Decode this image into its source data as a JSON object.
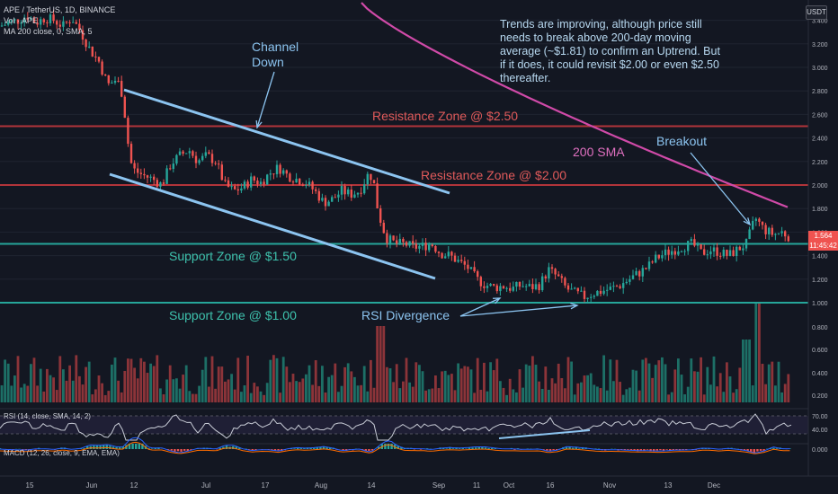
{
  "header": {
    "symbol_line": "APE / TetherUS, 1D, BINANCE",
    "ma_line": "MA 200 close, 0, SMA, 5",
    "vol_line": "Vol · APE"
  },
  "currency_button": "USDT",
  "price_tags": {
    "last": "1.564",
    "countdown": "11:45:42"
  },
  "commentary": "Trends are improving, although price still needs to break above 200-day moving average (~$1.81) to confirm an Uptrend. But if it does, it could revisit $2.00 or even $2.50 thereafter.",
  "annotations": {
    "channel": "Channel Down",
    "resistance_250": "Resistance Zone @ $2.50",
    "resistance_200": "Resistance Zone @ $2.00",
    "sma_label": "200 SMA",
    "breakout": "Breakout",
    "support_150": "Support Zone @ $1.50",
    "support_100": "Support Zone @ $1.00",
    "rsi_divergence": "RSI Divergence"
  },
  "rsi_header": "RSI (14, close, SMA, 14, 2)",
  "macd_header": "MACD (12, 26, close, 9, EMA, EMA)",
  "colors": {
    "background": "#131722",
    "up": "#26a69a",
    "down": "#ef5350",
    "resistance": "#b2343a",
    "support": "#26a69a",
    "channel": "#8cc4f0",
    "sma": "#d04aa8",
    "rsi": "#c8ccd6",
    "annotation_blue": "#8cc4f0"
  },
  "chart_data": {
    "type": "candlestick",
    "title": "APE / TetherUS, 1D, BINANCE",
    "x_tick_labels": [
      "15",
      "Jun",
      "12",
      "Jul",
      "17",
      "Aug",
      "14",
      "Sep",
      "11",
      "Oct",
      "16",
      "Nov",
      "13",
      "Dec"
    ],
    "price_axis": {
      "ticks": [
        "0.200",
        "0.400",
        "0.600",
        "0.800",
        "1.000",
        "1.200",
        "1.400",
        "1.600",
        "1.800",
        "2.000",
        "2.200",
        "2.400",
        "2.600",
        "2.800",
        "3.000",
        "3.200",
        "3.400"
      ],
      "range": [
        0.15,
        3.5
      ]
    },
    "rsi_axis": {
      "ticks": [
        "40.00",
        "70.00"
      ]
    },
    "macd_axis": {
      "ticks": [
        "0.000"
      ]
    },
    "horizontal_levels": [
      {
        "label": "Resistance Zone @ $2.50",
        "value": 2.5
      },
      {
        "label": "Resistance Zone @ $2.00",
        "value": 2.0
      },
      {
        "label": "Support Zone @ $1.50",
        "value": 1.5
      },
      {
        "label": "Support Zone @ $1.00",
        "value": 1.0
      }
    ],
    "last_price": 1.564,
    "sma200_approx": 1.81,
    "price_path": [
      [
        0,
        3.35
      ],
      [
        10,
        3.38
      ],
      [
        20,
        3.4
      ],
      [
        30,
        3.44
      ],
      [
        40,
        3.38
      ],
      [
        50,
        3.42
      ],
      [
        60,
        3.4
      ],
      [
        70,
        3.35
      ],
      [
        80,
        3.42
      ],
      [
        90,
        3.3
      ],
      [
        100,
        3.15
      ],
      [
        110,
        3.05
      ],
      [
        120,
        2.85
      ],
      [
        130,
        2.9
      ],
      [
        137,
        2.75
      ],
      [
        140,
        2.5
      ],
      [
        145,
        2.2
      ],
      [
        150,
        2.12
      ],
      [
        160,
        2.08
      ],
      [
        170,
        2.05
      ],
      [
        180,
        2.0
      ],
      [
        190,
        2.18
      ],
      [
        200,
        2.25
      ],
      [
        210,
        2.3
      ],
      [
        220,
        2.2
      ],
      [
        230,
        2.25
      ],
      [
        240,
        2.2
      ],
      [
        250,
        2.0
      ],
      [
        260,
        1.95
      ],
      [
        270,
        1.98
      ],
      [
        280,
        2.05
      ],
      [
        290,
        2.02
      ],
      [
        300,
        2.1
      ],
      [
        310,
        2.15
      ],
      [
        320,
        2.08
      ],
      [
        330,
        2.05
      ],
      [
        340,
        2.02
      ],
      [
        350,
        1.95
      ],
      [
        360,
        1.85
      ],
      [
        370,
        1.88
      ],
      [
        380,
        1.95
      ],
      [
        390,
        1.92
      ],
      [
        400,
        1.95
      ],
      [
        410,
        2.1
      ],
      [
        415,
        2.05
      ],
      [
        420,
        1.8
      ],
      [
        425,
        1.65
      ],
      [
        430,
        1.55
      ],
      [
        440,
        1.5
      ],
      [
        450,
        1.5
      ],
      [
        460,
        1.47
      ],
      [
        470,
        1.48
      ],
      [
        480,
        1.5
      ],
      [
        490,
        1.42
      ],
      [
        500,
        1.4
      ],
      [
        510,
        1.35
      ],
      [
        520,
        1.3
      ],
      [
        530,
        1.2
      ],
      [
        540,
        1.15
      ],
      [
        550,
        1.13
      ],
      [
        560,
        1.14
      ],
      [
        570,
        1.12
      ],
      [
        580,
        1.15
      ],
      [
        590,
        1.13
      ],
      [
        600,
        1.15
      ],
      [
        610,
        1.28
      ],
      [
        620,
        1.22
      ],
      [
        630,
        1.12
      ],
      [
        640,
        1.08
      ],
      [
        650,
        1.05
      ],
      [
        660,
        1.08
      ],
      [
        670,
        1.1
      ],
      [
        680,
        1.12
      ],
      [
        690,
        1.15
      ],
      [
        700,
        1.2
      ],
      [
        710,
        1.25
      ],
      [
        720,
        1.3
      ],
      [
        730,
        1.38
      ],
      [
        740,
        1.42
      ],
      [
        750,
        1.45
      ],
      [
        760,
        1.48
      ],
      [
        770,
        1.5
      ],
      [
        780,
        1.42
      ],
      [
        790,
        1.45
      ],
      [
        800,
        1.43
      ],
      [
        810,
        1.4
      ],
      [
        820,
        1.45
      ],
      [
        830,
        1.5
      ],
      [
        840,
        1.72
      ],
      [
        850,
        1.62
      ],
      [
        860,
        1.58
      ],
      [
        870,
        1.6
      ],
      [
        878,
        1.56
      ]
    ]
  }
}
